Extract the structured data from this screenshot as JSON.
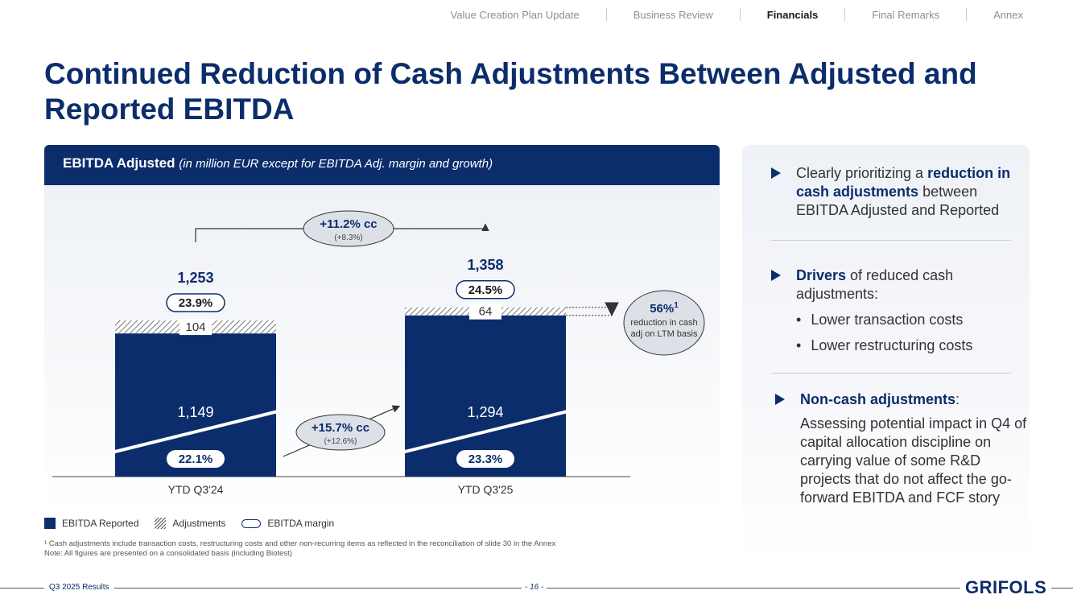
{
  "nav": {
    "tabs": [
      {
        "label": "Value Creation Plan Update",
        "active": false
      },
      {
        "label": "Business Review",
        "active": false
      },
      {
        "label": "Financials",
        "active": true
      },
      {
        "label": "Final Remarks",
        "active": false
      },
      {
        "label": "Annex",
        "active": false
      }
    ]
  },
  "page_title": "Continued Reduction of Cash Adjustments Between Adjusted and Reported EBITDA",
  "card": {
    "title": "EBITDA Adjusted",
    "subtitle": "(in million EUR except for EBITDA Adj. margin and growth)"
  },
  "chart_data": {
    "type": "bar",
    "stacked": true,
    "categories": [
      "YTD Q3'24",
      "YTD Q3'25"
    ],
    "series": [
      {
        "name": "EBITDA Reported",
        "values": [
          1149,
          1294
        ]
      },
      {
        "name": "Adjustments",
        "values": [
          104,
          64
        ]
      }
    ],
    "totals": [
      "1,253",
      "1,358"
    ],
    "total_values": [
      1253,
      1358
    ],
    "reported_labels": [
      "1,149",
      "1,294"
    ],
    "adjustment_labels": [
      "104",
      "64"
    ],
    "adjusted_margins": [
      "23.9%",
      "24.5%"
    ],
    "reported_margins": [
      "22.1%",
      "23.3%"
    ],
    "growth_adjusted": {
      "main": "+11.2% cc",
      "sub": "(+8.3%)"
    },
    "growth_reported": {
      "main": "+15.7% cc",
      "sub": "(+12.6%)"
    },
    "reduction_callout": {
      "main": "56%",
      "sup": "1",
      "line1": "reduction in cash",
      "line2": "adj on LTM basis"
    },
    "colors": {
      "reported": "#0c2d6b",
      "adjustments_hatch": "#555555",
      "accent": "#0c2d6b"
    }
  },
  "legend": {
    "reported": "EBITDA Reported",
    "adjustments": "Adjustments",
    "margin": "EBITDA margin"
  },
  "footnotes": {
    "line1": "¹ Cash adjustments include transaction costs, restructuring costs and other non-recurring items as reflected in the reconciliation of slide 30 in the Annex",
    "line2": "Note: All figures are presented on a consolidated basis (including Biotest)"
  },
  "side": {
    "block1": {
      "pre": "Clearly prioritizing a ",
      "bold": "reduction in cash adjustments",
      "post": " between EBITDA Adjusted and Reported"
    },
    "block2": {
      "bold": "Drivers",
      "post": " of reduced cash adjustments:",
      "bullets": [
        "Lower transaction costs",
        "Lower restructuring costs"
      ]
    },
    "block3": {
      "bold": "Non-cash adjustments",
      "post": ":",
      "body": "Assessing potential impact in Q4 of capital allocation discipline on carrying value of some R&D projects that do not affect the go-forward EBITDA and FCF story"
    }
  },
  "footer": {
    "left": "Q3 2025 Results",
    "page": "- 16 -",
    "logo": "GRIFOLS"
  }
}
